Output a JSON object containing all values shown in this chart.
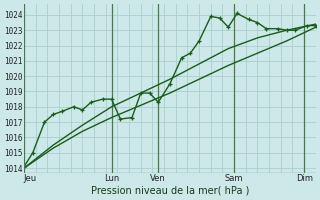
{
  "background_color": "#cce8e8",
  "grid_color": "#aacfcf",
  "line_color": "#1a5c1a",
  "vline_color": "#4a7a4a",
  "ylim": [
    1013.7,
    1024.7
  ],
  "xlim": [
    0,
    100
  ],
  "ylabel_ticks": [
    1014,
    1015,
    1016,
    1017,
    1018,
    1019,
    1020,
    1021,
    1022,
    1023,
    1024
  ],
  "xtick_positions": [
    2,
    30,
    46,
    72,
    96
  ],
  "xtick_labels": [
    "Jeu",
    "Lun",
    "Ven",
    "Sam",
    "Dim"
  ],
  "xlabel": "Pression niveau de la mer( hPa )",
  "smooth_line1": [
    [
      0,
      1014.0
    ],
    [
      10,
      1015.3
    ],
    [
      20,
      1016.4
    ],
    [
      30,
      1017.3
    ],
    [
      40,
      1018.1
    ],
    [
      50,
      1018.9
    ],
    [
      60,
      1019.8
    ],
    [
      70,
      1020.7
    ],
    [
      80,
      1021.5
    ],
    [
      90,
      1022.3
    ],
    [
      100,
      1023.2
    ]
  ],
  "smooth_line2": [
    [
      0,
      1014.0
    ],
    [
      10,
      1015.5
    ],
    [
      20,
      1016.8
    ],
    [
      30,
      1018.0
    ],
    [
      40,
      1018.9
    ],
    [
      50,
      1019.8
    ],
    [
      60,
      1020.8
    ],
    [
      70,
      1021.8
    ],
    [
      80,
      1022.5
    ],
    [
      90,
      1023.0
    ],
    [
      100,
      1023.4
    ]
  ],
  "jagged_line": [
    [
      0,
      1014.1
    ],
    [
      3,
      1015.0
    ],
    [
      7,
      1017.0
    ],
    [
      10,
      1017.5
    ],
    [
      13,
      1017.7
    ],
    [
      17,
      1018.0
    ],
    [
      20,
      1017.8
    ],
    [
      23,
      1018.3
    ],
    [
      27,
      1018.5
    ],
    [
      30,
      1018.5
    ],
    [
      33,
      1017.2
    ],
    [
      37,
      1017.3
    ],
    [
      40,
      1018.9
    ],
    [
      43,
      1018.9
    ],
    [
      46,
      1018.3
    ],
    [
      50,
      1019.5
    ],
    [
      54,
      1021.2
    ],
    [
      57,
      1021.5
    ],
    [
      60,
      1022.3
    ],
    [
      64,
      1023.9
    ],
    [
      67,
      1023.8
    ],
    [
      70,
      1023.2
    ],
    [
      73,
      1024.1
    ],
    [
      77,
      1023.7
    ],
    [
      80,
      1023.5
    ],
    [
      83,
      1023.1
    ],
    [
      87,
      1023.1
    ],
    [
      90,
      1023.0
    ],
    [
      93,
      1023.0
    ],
    [
      97,
      1023.3
    ],
    [
      100,
      1023.3
    ]
  ],
  "vlines": [
    30,
    46,
    72,
    96
  ],
  "grid_step_x": 4,
  "marker_size": 3.0,
  "line_width": 1.0
}
